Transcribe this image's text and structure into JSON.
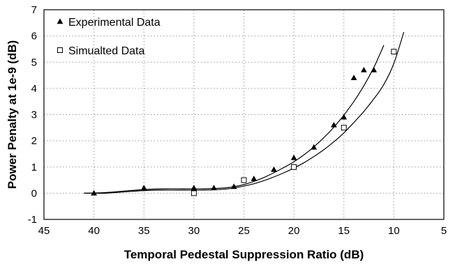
{
  "chart_data": {
    "type": "scatter",
    "title": "",
    "xlabel": "Temporal Pedestal Suppression Ratio (dB)",
    "ylabel": "Power Penalty at 1e-9 (dB)",
    "xlim": [
      45,
      5
    ],
    "ylim": [
      -1,
      7
    ],
    "x_reversed": true,
    "x_ticks": [
      45,
      40,
      35,
      30,
      25,
      20,
      15,
      10,
      5
    ],
    "y_ticks": [
      -1,
      0,
      1,
      2,
      3,
      4,
      5,
      6,
      7
    ],
    "grid": true,
    "legend_position": "top-left",
    "series": [
      {
        "name": "Experimental Data",
        "marker": "filled-triangle",
        "x": [
          40,
          35,
          30,
          28,
          26,
          24,
          22,
          20,
          18,
          16,
          15,
          14,
          13,
          12
        ],
        "y": [
          0.0,
          0.2,
          0.2,
          0.2,
          0.25,
          0.55,
          0.9,
          1.35,
          1.75,
          2.6,
          2.9,
          4.4,
          4.7,
          4.7
        ]
      },
      {
        "name": "Simualted Data",
        "marker": "open-square",
        "x": [
          30,
          25,
          20,
          15,
          10
        ],
        "y": [
          0.0,
          0.5,
          1.0,
          2.5,
          5.4
        ]
      }
    ],
    "fit_curves": [
      {
        "for": "Experimental Data",
        "x": [
          41,
          39,
          37,
          35,
          33,
          31,
          29,
          27,
          26,
          25,
          24,
          23,
          22,
          21,
          20,
          19,
          18,
          17,
          16,
          15,
          14,
          13,
          12,
          11
        ],
        "y": [
          0.0,
          0.02,
          0.08,
          0.14,
          0.17,
          0.17,
          0.17,
          0.2,
          0.25,
          0.33,
          0.45,
          0.6,
          0.78,
          0.98,
          1.2,
          1.46,
          1.77,
          2.12,
          2.52,
          2.98,
          3.5,
          4.1,
          4.8,
          5.65
        ]
      },
      {
        "for": "Simualted Data",
        "x": [
          41,
          39,
          37,
          35,
          33,
          31,
          29,
          27,
          26,
          25,
          24,
          23,
          22,
          21,
          20,
          19,
          18,
          17,
          16,
          15,
          14,
          13,
          12,
          11,
          10,
          9
        ],
        "y": [
          0.0,
          0.0,
          0.05,
          0.1,
          0.12,
          0.12,
          0.12,
          0.15,
          0.2,
          0.27,
          0.36,
          0.48,
          0.62,
          0.78,
          0.96,
          1.16,
          1.4,
          1.66,
          1.96,
          2.3,
          2.7,
          3.12,
          3.6,
          4.15,
          4.95,
          6.15
        ]
      }
    ]
  }
}
